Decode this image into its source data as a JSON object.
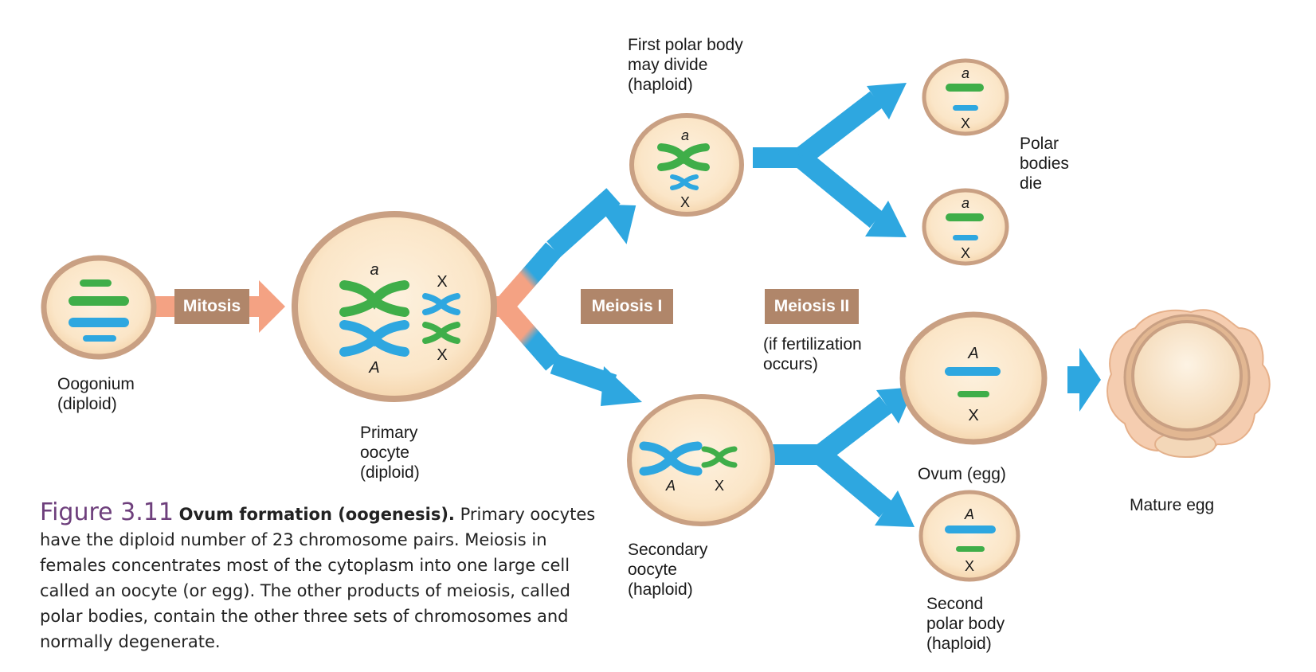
{
  "labels": {
    "oogonium": [
      "Oogonium",
      "(diploid)"
    ],
    "primary": [
      "Primary",
      "oocyte",
      "(diploid)"
    ],
    "first_polar": [
      "First polar body",
      "may divide",
      "(haploid)"
    ],
    "polar_die": [
      "Polar",
      "bodies",
      "die"
    ],
    "secondary": [
      "Secondary",
      "oocyte",
      "(haploid)"
    ],
    "if_fert": [
      "(if fertilization",
      "occurs)"
    ],
    "ovum": "Ovum (egg)",
    "second_polar": [
      "Second",
      "polar body",
      "(haploid)"
    ],
    "mature": "Mature egg"
  },
  "stages": {
    "mitosis": "Mitosis",
    "meiosis1": "Meiosis I",
    "meiosis2": "Meiosis II"
  },
  "genes": {
    "a": "a",
    "A": "A",
    "X": "X"
  },
  "caption": {
    "number": "Figure 3.11",
    "title": "Ovum formation (oogenesis).",
    "text": "Primary oocytes have the diploid number of 23 chromosome pairs. Meiosis in females concentrates most of the cytoplasm into one large cell called an oocyte (or egg). The other products of meiosis, called polar bodies, contain the other three sets of chromosomes and normally degenerate."
  },
  "colors": {
    "cell_fill": "#fbe6c8",
    "cell_border": "#c9a083",
    "green": "#3fae49",
    "blue": "#2ea7e0",
    "salmon": "#f4a283",
    "stage_box": "#b0866a",
    "caption_number": "#6e3f7c"
  }
}
